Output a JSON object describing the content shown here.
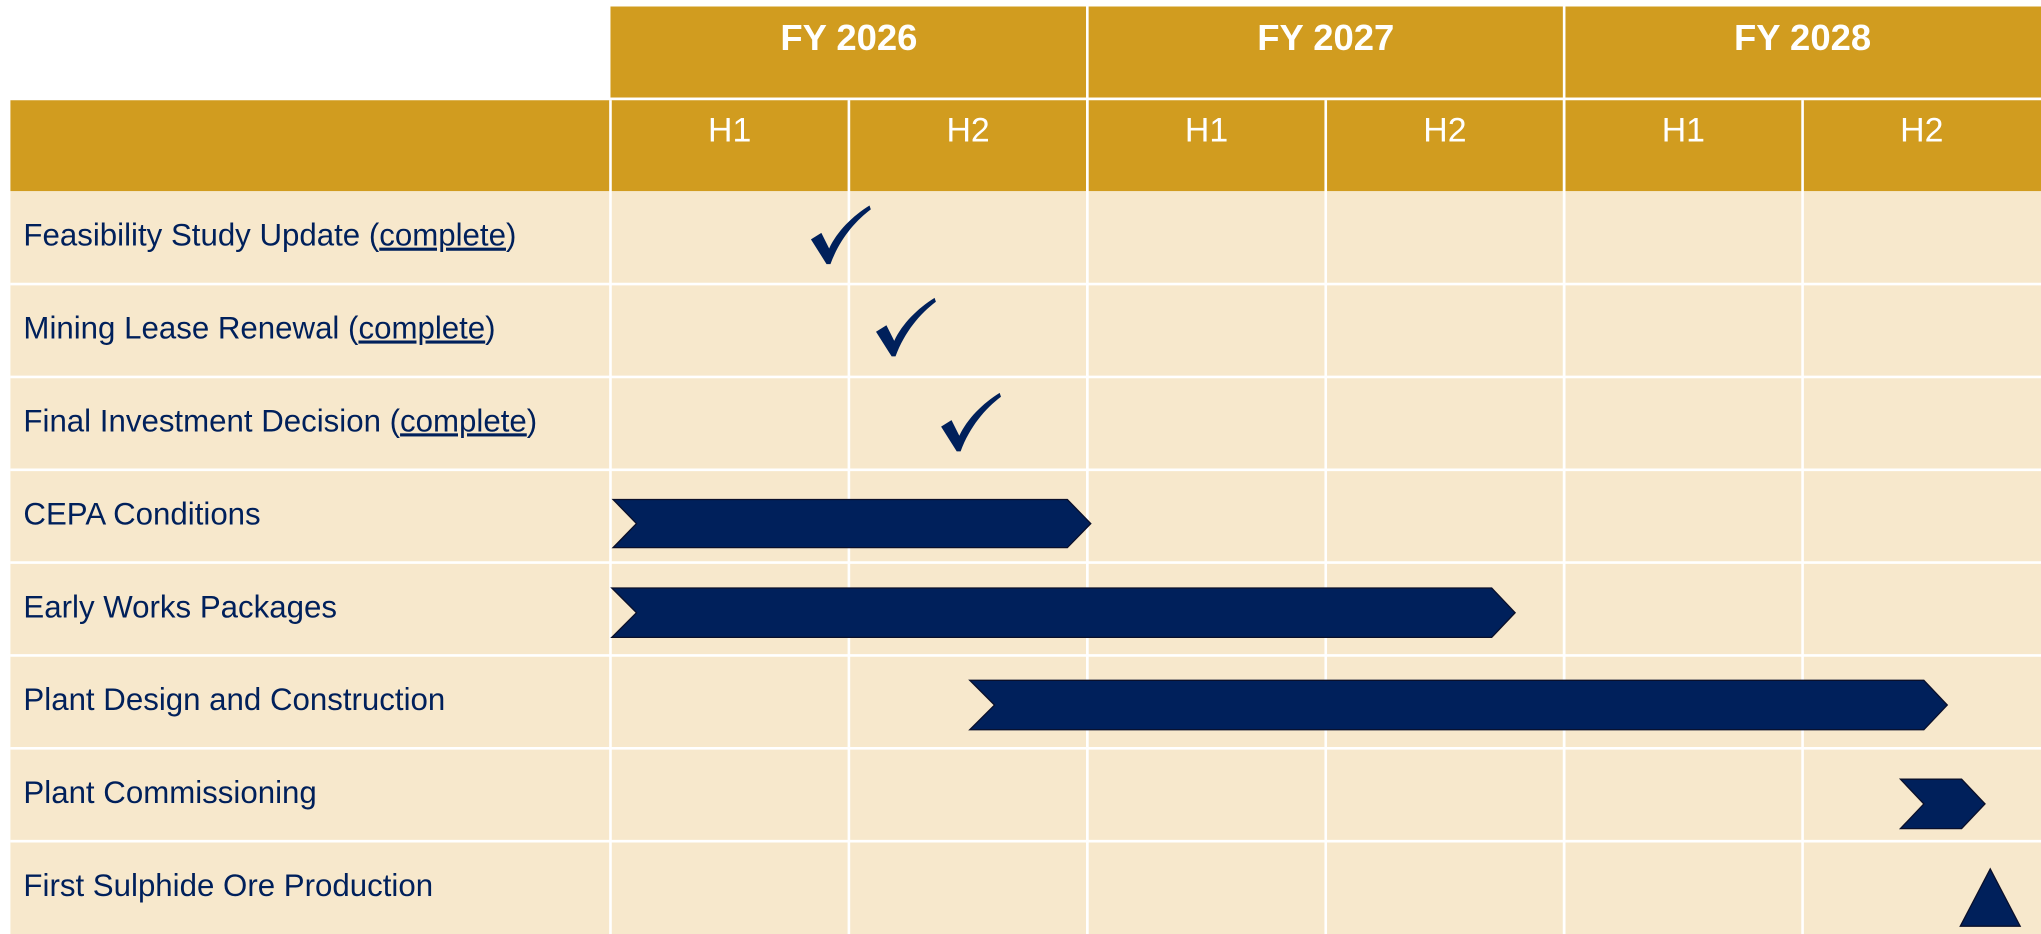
{
  "header": {
    "years": [
      "FY 2026",
      "FY 2027",
      "FY 2028"
    ],
    "halves": [
      "H1",
      "H2",
      "H1",
      "H2",
      "H1",
      "H2"
    ]
  },
  "rows": [
    {
      "text": "Feasibility Study Update (complete)",
      "link": "complete"
    },
    {
      "text": "Mining Lease Renewal (complete)",
      "link": "complete"
    },
    {
      "text": "Final Investment Decision (complete)",
      "link": "complete"
    },
    {
      "text": "CEPA Conditions"
    },
    {
      "text": "Early Works Packages"
    },
    {
      "text": "Plant Design and Construction"
    },
    {
      "text": "Plant Commissioning"
    },
    {
      "text": "First Sulphide Ore Production"
    }
  ]
}
